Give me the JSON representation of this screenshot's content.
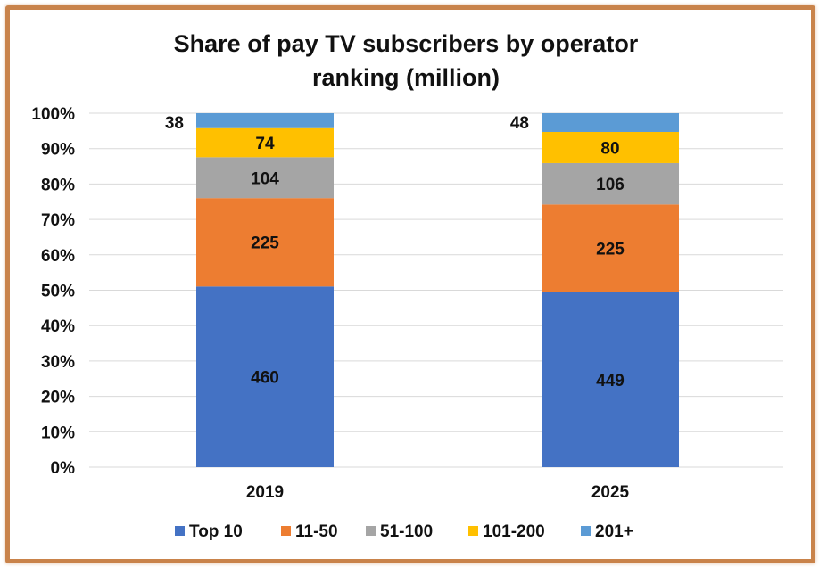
{
  "chart_data": {
    "type": "bar",
    "stacked": "percent",
    "title": "Share of pay TV subscribers by operator ranking (million)",
    "title_lines": [
      "Share of pay TV subscribers by operator",
      "ranking (million)"
    ],
    "categories": [
      "2019",
      "2025"
    ],
    "ylim": [
      0,
      100
    ],
    "yticks": [
      "0%",
      "10%",
      "20%",
      "30%",
      "40%",
      "50%",
      "60%",
      "70%",
      "80%",
      "90%",
      "100%"
    ],
    "grid": true,
    "legend_position": "bottom",
    "series": [
      {
        "name": "Top 10",
        "values": [
          460,
          449
        ],
        "color": "#4472c4"
      },
      {
        "name": "11-50",
        "values": [
          225,
          225
        ],
        "color": "#ed7d31"
      },
      {
        "name": "51-100",
        "values": [
          104,
          106
        ],
        "color": "#a5a5a5"
      },
      {
        "name": "101-200",
        "values": [
          74,
          80
        ],
        "color": "#ffc000"
      },
      {
        "name": "201+",
        "values": [
          38,
          48
        ],
        "color": "#5b9bd5"
      }
    ]
  }
}
